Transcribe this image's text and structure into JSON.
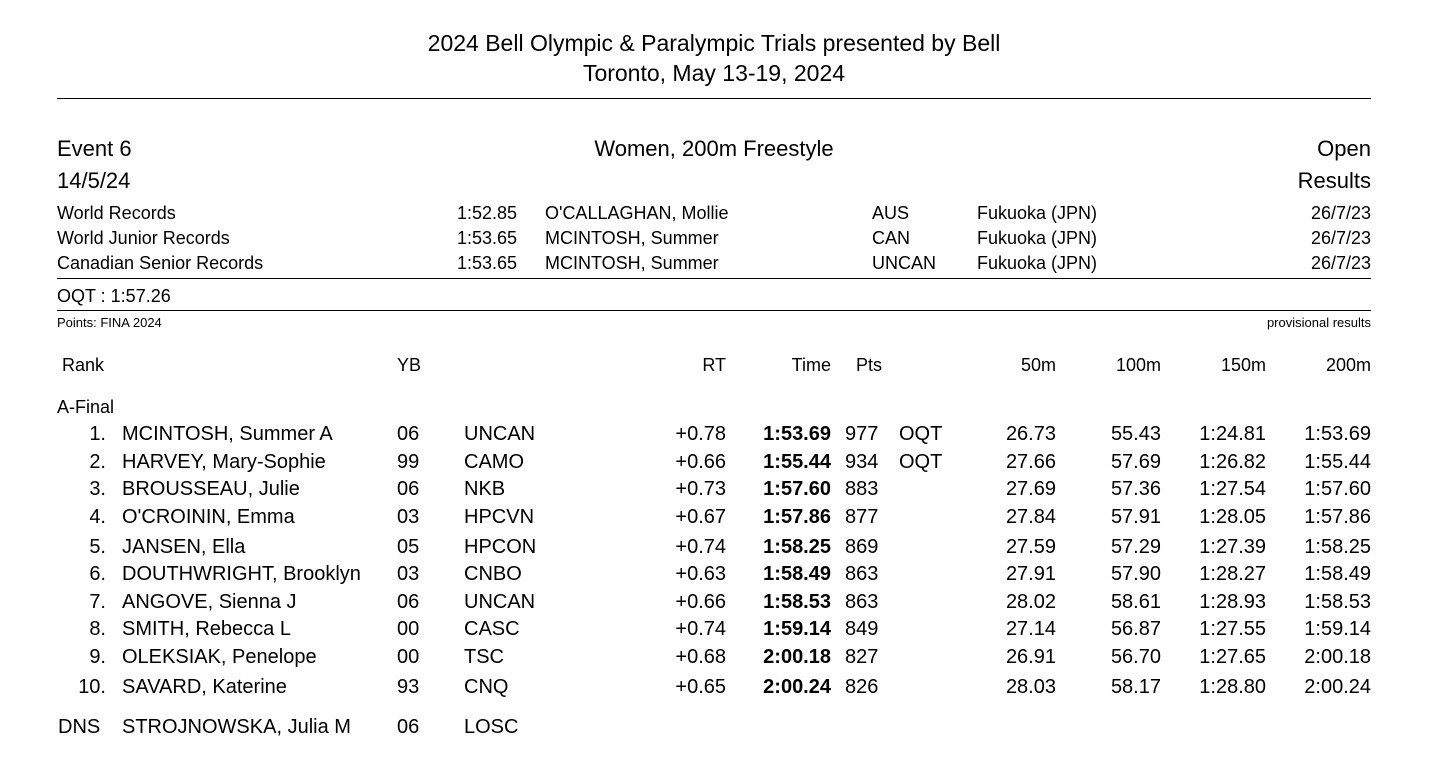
{
  "header": {
    "title_line1": "2024 Bell Olympic & Paralympic Trials presented by Bell",
    "title_line2": "Toronto, May 13-19, 2024"
  },
  "event": {
    "number": "Event 6",
    "name": "Women, 200m Freestyle",
    "category": "Open",
    "date": "14/5/24",
    "status": "Results"
  },
  "records": [
    {
      "label": "World Records",
      "time": "1:52.85",
      "name": "O'CALLAGHAN, Mollie",
      "team": "AUS",
      "place": "Fukuoka (JPN)",
      "date": "26/7/23"
    },
    {
      "label": "World Junior Records",
      "time": "1:53.65",
      "name": "MCINTOSH, Summer",
      "team": "CAN",
      "place": "Fukuoka (JPN)",
      "date": "26/7/23"
    },
    {
      "label": "Canadian Senior Records",
      "time": "1:53.65",
      "name": "MCINTOSH, Summer",
      "team": "UNCAN",
      "place": "Fukuoka (JPN)",
      "date": "26/7/23"
    }
  ],
  "oqt": "OQT : 1:57.26",
  "points_note": "Points: FINA 2024",
  "provisional_note": "provisional results",
  "columns": {
    "rank": "Rank",
    "yb": "YB",
    "rt": "RT",
    "time": "Time",
    "pts": "Pts",
    "s50": "50m",
    "s100": "100m",
    "s150": "150m",
    "s200": "200m"
  },
  "section_label": "A-Final",
  "results": [
    {
      "rank": "1.",
      "name": "MCINTOSH, Summer A",
      "yb": "06",
      "team": "UNCAN",
      "rt": "+0.78",
      "time": "1:53.69",
      "pts": "977",
      "q": "OQT",
      "s50": "26.73",
      "s100": "55.43",
      "s150": "1:24.81",
      "s200": "1:53.69"
    },
    {
      "rank": "2.",
      "name": "HARVEY, Mary-Sophie",
      "yb": "99",
      "team": "CAMO",
      "rt": "+0.66",
      "time": "1:55.44",
      "pts": "934",
      "q": "OQT",
      "s50": "27.66",
      "s100": "57.69",
      "s150": "1:26.82",
      "s200": "1:55.44"
    },
    {
      "rank": "3.",
      "name": "BROUSSEAU, Julie",
      "yb": "06",
      "team": "NKB",
      "rt": "+0.73",
      "time": "1:57.60",
      "pts": "883",
      "q": "",
      "s50": "27.69",
      "s100": "57.36",
      "s150": "1:27.54",
      "s200": "1:57.60"
    },
    {
      "rank": "4.",
      "name": "O'CROININ, Emma",
      "yb": "03",
      "team": "HPCVN",
      "rt": "+0.67",
      "time": "1:57.86",
      "pts": "877",
      "q": "",
      "s50": "27.84",
      "s100": "57.91",
      "s150": "1:28.05",
      "s200": "1:57.86"
    },
    {
      "rank": "5.",
      "name": "JANSEN, Ella",
      "yb": "05",
      "team": "HPCON",
      "rt": "+0.74",
      "time": "1:58.25",
      "pts": "869",
      "q": "",
      "s50": "27.59",
      "s100": "57.29",
      "s150": "1:27.39",
      "s200": "1:58.25"
    },
    {
      "rank": "6.",
      "name": "DOUTHWRIGHT, Brooklyn",
      "yb": "03",
      "team": "CNBO",
      "rt": "+0.63",
      "time": "1:58.49",
      "pts": "863",
      "q": "",
      "s50": "27.91",
      "s100": "57.90",
      "s150": "1:28.27",
      "s200": "1:58.49"
    },
    {
      "rank": "7.",
      "name": "ANGOVE, Sienna J",
      "yb": "06",
      "team": "UNCAN",
      "rt": "+0.66",
      "time": "1:58.53",
      "pts": "863",
      "q": "",
      "s50": "28.02",
      "s100": "58.61",
      "s150": "1:28.93",
      "s200": "1:58.53"
    },
    {
      "rank": "8.",
      "name": "SMITH, Rebecca L",
      "yb": "00",
      "team": "CASC",
      "rt": "+0.74",
      "time": "1:59.14",
      "pts": "849",
      "q": "",
      "s50": "27.14",
      "s100": "56.87",
      "s150": "1:27.55",
      "s200": "1:59.14"
    },
    {
      "rank": "9.",
      "name": "OLEKSIAK, Penelope",
      "yb": "00",
      "team": "TSC",
      "rt": "+0.68",
      "time": "2:00.18",
      "pts": "827",
      "q": "",
      "s50": "26.91",
      "s100": "56.70",
      "s150": "1:27.65",
      "s200": "2:00.18"
    },
    {
      "rank": "10.",
      "name": "SAVARD, Katerine",
      "yb": "93",
      "team": "CNQ",
      "rt": "+0.65",
      "time": "2:00.24",
      "pts": "826",
      "q": "",
      "s50": "28.03",
      "s100": "58.17",
      "s150": "1:28.80",
      "s200": "2:00.24"
    }
  ],
  "dns": {
    "rank": "DNS",
    "name": "STROJNOWSKA, Julia M",
    "yb": "06",
    "team": "LOSC"
  }
}
